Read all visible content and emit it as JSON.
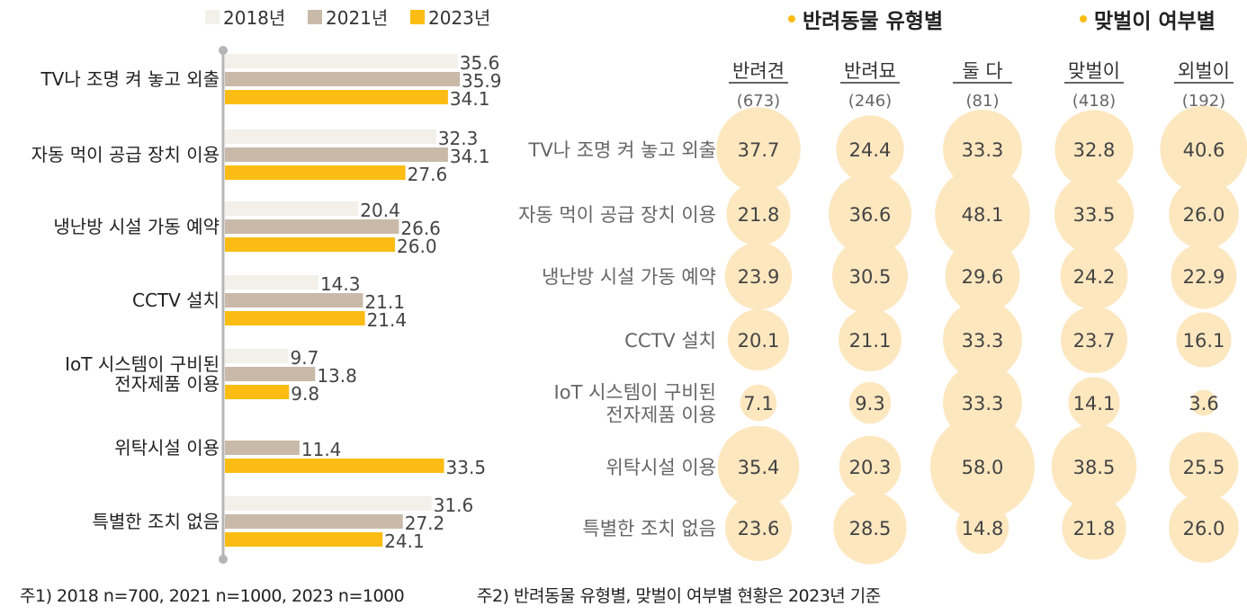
{
  "chart_data": [
    {
      "type": "bar",
      "orientation": "horizontal",
      "categories": [
        [
          "TV나 조명 켜 놓고 외출"
        ],
        [
          "자동 먹이 공급 장치 이용"
        ],
        [
          "냉난방 시설 가동 예약"
        ],
        [
          "CCTV 설치"
        ],
        [
          "IoT 시스템이 구비된",
          "전자제품 이용"
        ],
        [
          "위탁시설 이용"
        ],
        [
          "특별한 조치 없음"
        ]
      ],
      "series": [
        {
          "name": "2018년",
          "color": "#f3f0ea",
          "values": [
            35.6,
            32.3,
            20.4,
            14.3,
            9.7,
            null,
            31.6
          ],
          "labels": [
            "35.6",
            "32.3",
            "20.4",
            "14.3",
            "9.7",
            "",
            "31.6"
          ]
        },
        {
          "name": "2021년",
          "color": "#c9b9a8",
          "values": [
            35.9,
            34.1,
            26.6,
            21.1,
            13.8,
            11.4,
            27.2
          ],
          "labels": [
            "35.9",
            "34.1",
            "26.6",
            "21.1",
            "13.8",
            "11.4",
            "27.2"
          ]
        },
        {
          "name": "2023년",
          "color": "#fbbd13",
          "values": [
            34.1,
            27.6,
            26.0,
            21.4,
            9.8,
            33.5,
            24.1
          ],
          "labels": [
            "34.1",
            "27.6",
            "26.0",
            "21.4",
            "9.8",
            "33.5",
            "24.1"
          ]
        }
      ],
      "xlim": [
        0,
        40
      ],
      "legend_position": "top",
      "grid": false
    },
    {
      "type": "bubble-table",
      "group_headers": [
        "반려동물 유형별",
        "맞벌이 여부별"
      ],
      "group_marker_color": "#fbbd13",
      "columns": [
        {
          "label": "반려견",
          "n": "(673)"
        },
        {
          "label": "반려묘",
          "n": "(246)"
        },
        {
          "label": "둘 다",
          "n": "(81)"
        },
        {
          "label": "맞벌이",
          "n": "(418)"
        },
        {
          "label": "외벌이",
          "n": "(192)"
        }
      ],
      "rows": [
        {
          "label": [
            "TV나 조명 켜 놓고 외출"
          ],
          "values": [
            37.7,
            24.4,
            33.3,
            32.8,
            40.6
          ]
        },
        {
          "label": [
            "자동 먹이 공급 장치 이용"
          ],
          "values": [
            21.8,
            36.6,
            48.1,
            33.5,
            26.0
          ]
        },
        {
          "label": [
            "냉난방 시설 가동 예약"
          ],
          "values": [
            23.9,
            30.5,
            29.6,
            24.2,
            22.9
          ]
        },
        {
          "label": [
            "CCTV 설치"
          ],
          "values": [
            20.1,
            21.1,
            33.3,
            23.7,
            16.1
          ]
        },
        {
          "label": [
            "IoT 시스템이 구비된",
            "전자제품 이용"
          ],
          "values": [
            7.1,
            9.3,
            33.3,
            14.1,
            3.6
          ]
        },
        {
          "label": [
            "위탁시설 이용"
          ],
          "values": [
            35.4,
            20.3,
            58.0,
            38.5,
            25.5
          ]
        },
        {
          "label": [
            "특별한 조치 없음"
          ],
          "values": [
            23.6,
            28.5,
            14.8,
            21.8,
            26.0
          ]
        }
      ],
      "bubble_color": "#fde7bf"
    }
  ],
  "notes": {
    "left": "주1) 2018 n=700, 2021 n=1000, 2023 n=1000",
    "right": "주2) 반려동물 유형별, 맞벌이 여부별 현황은 2023년 기준"
  }
}
